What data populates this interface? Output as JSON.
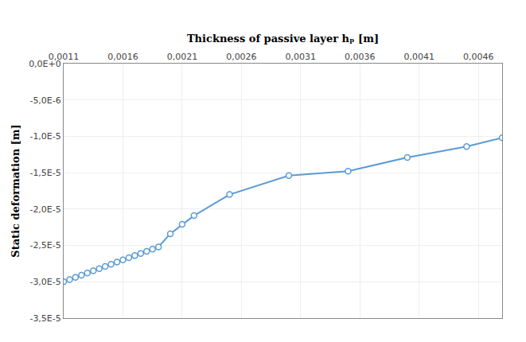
{
  "chart_data": {
    "type": "line",
    "xlabel": "Thickness of passive layer hₚ [m]",
    "ylabel": "Static deformation [m]",
    "x": [
      0.0011,
      0.00115,
      0.0012,
      0.00125,
      0.0013,
      0.00135,
      0.0014,
      0.00145,
      0.0015,
      0.00155,
      0.0016,
      0.00165,
      0.0017,
      0.00175,
      0.0018,
      0.00185,
      0.0019,
      0.002,
      0.0021,
      0.0022,
      0.0025,
      0.003,
      0.0035,
      0.004,
      0.0045,
      0.0048
    ],
    "values": [
      -3e-05,
      -2.97e-05,
      -2.94e-05,
      -2.91e-05,
      -2.88e-05,
      -2.85e-05,
      -2.82e-05,
      -2.79e-05,
      -2.76e-05,
      -2.73e-05,
      -2.7e-05,
      -2.67e-05,
      -2.64e-05,
      -2.61e-05,
      -2.58e-05,
      -2.55e-05,
      -2.52e-05,
      -2.34e-05,
      -2.21e-05,
      -2.09e-05,
      -1.8e-05,
      -1.54e-05,
      -1.48e-05,
      -1.29e-05,
      -1.14e-05,
      -1.02e-05
    ],
    "color": "#5b9bd5",
    "marker": "circle",
    "xlim": [
      0.0011,
      0.0048
    ],
    "ylim": [
      -3.5e-05,
      0.0
    ],
    "xticks": [
      {
        "value": 0.0011,
        "label": "0,0011"
      },
      {
        "value": 0.0016,
        "label": "0,0016"
      },
      {
        "value": 0.0021,
        "label": "0,0021"
      },
      {
        "value": 0.0026,
        "label": "0,0026"
      },
      {
        "value": 0.0031,
        "label": "0,0031"
      },
      {
        "value": 0.0036,
        "label": "0,0036"
      },
      {
        "value": 0.0041,
        "label": "0,0041"
      },
      {
        "value": 0.0046,
        "label": "0,0046"
      }
    ],
    "yticks": [
      {
        "value": 0.0,
        "label": "0,0E+0"
      },
      {
        "value": -5e-06,
        "label": "-5,0E-6"
      },
      {
        "value": -1e-05,
        "label": "-1,0E-5"
      },
      {
        "value": -1.5e-05,
        "label": "-1,5E-5"
      },
      {
        "value": -2e-05,
        "label": "-2,0E-5"
      },
      {
        "value": -2.5e-05,
        "label": "-2,5E-5"
      },
      {
        "value": -3e-05,
        "label": "-3,0E-5"
      },
      {
        "value": -3.5e-05,
        "label": "-3,5E-5"
      }
    ],
    "grid": true
  }
}
